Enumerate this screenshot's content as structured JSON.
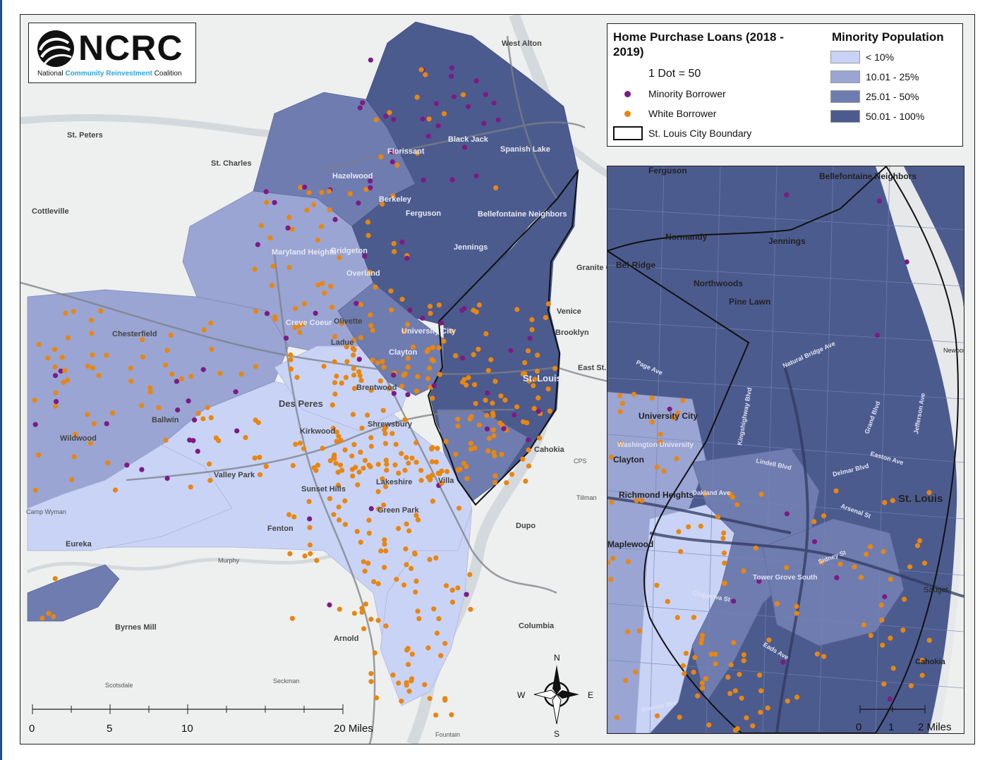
{
  "logo": {
    "wordmark": "NCRC",
    "subtitle_plain_1": "National ",
    "subtitle_highlight": "Community Reinvestment",
    "subtitle_plain_2": " Coalition"
  },
  "legend": {
    "loans_title": "Home Purchase Loans (2018 - 2019)",
    "dot_scale": "1 Dot = 50",
    "minority_label": "Minority Borrower",
    "white_label": "White Borrower",
    "boundary_label": "St. Louis City Boundary",
    "population_title": "Minority Population",
    "classes": [
      {
        "label": "< 10%",
        "color": "#c9d3f6"
      },
      {
        "label": "10.01 - 25%",
        "color": "#9aa5d3"
      },
      {
        "label": "25.01 - 50%",
        "color": "#6f7cb0"
      },
      {
        "label": "50.01 - 100%",
        "color": "#4c5b8e"
      }
    ]
  },
  "colors": {
    "minority_dot": "#7d1a85",
    "white_dot": "#e8860f",
    "river": "#d3d9dc",
    "basemap": "#eef0ef"
  },
  "main_map": {
    "places_dark": [
      "St. Peters",
      "St. Charles",
      "Cottleville",
      "Hazelwood",
      "Florissant",
      "Black Jack",
      "Spanish Lake",
      "Berkeley",
      "Ferguson",
      "Bellefontaine Neighbors",
      "Jennings",
      "Maryland Heights",
      "Creve Coeur",
      "Chesterfield",
      "Olivette",
      "Ladue",
      "University City",
      "Clayton",
      "Brentwood",
      "Des Peres",
      "Kirkwood",
      "Ballwin",
      "Wildwood",
      "Valley Park",
      "Shrewsbury",
      "Sunset Hills",
      "Lakeshire",
      "Green Park",
      "Villa",
      "Fenton",
      "Eureka",
      "Arnold",
      "Byrnes Mill",
      "St. Louis",
      "East St. Louis",
      "Granite City",
      "Venice",
      "Brooklyn",
      "Cahokia",
      "Columbia",
      "Dupo",
      "West Alton",
      "Bridgeton",
      "Overland"
    ],
    "places_light": [
      "Murphy",
      "Camp Wyman",
      "Tillman",
      "Seckman",
      "Scotsdale",
      "Fountain",
      "CPS"
    ],
    "scale_ticks": [
      "0",
      "5",
      "10",
      "20 Miles"
    ],
    "compass": {
      "n": "N",
      "s": "S",
      "e": "E",
      "w": "W"
    }
  },
  "inset_map": {
    "places": [
      "Ferguson",
      "Bellefontaine Neighbors",
      "Normandy",
      "Jennings",
      "Bel-Ridge",
      "Northwoods",
      "Pine Lawn",
      "University City",
      "Clayton",
      "Richmond Heights",
      "Maplewood",
      "St. Louis",
      "Sauget",
      "Cahokia",
      "Newport",
      "Tower Grove South",
      "Washington University"
    ],
    "streets": [
      "Natural Bridge Ave",
      "Delmar Blvd",
      "Lindell Blvd",
      "Oakland Ave",
      "Chippewa St",
      "Gravois Ave",
      "Grand Blvd",
      "Jefferson Ave",
      "Kingshighway Blvd",
      "Arsenal St",
      "Sidney St",
      "Easton Ave",
      "Page Ave",
      "Eads Ave"
    ],
    "scale_ticks": [
      "0",
      "1",
      "2 Miles"
    ]
  }
}
